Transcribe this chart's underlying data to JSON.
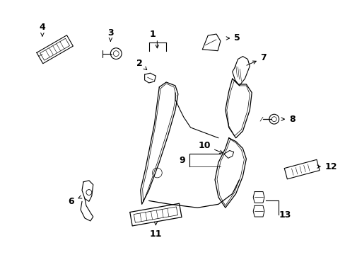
{
  "bg_color": "#ffffff",
  "fig_width": 4.89,
  "fig_height": 3.6,
  "dpi": 100,
  "line_color": "#000000",
  "text_color": "#000000",
  "label_fontsize": 9
}
